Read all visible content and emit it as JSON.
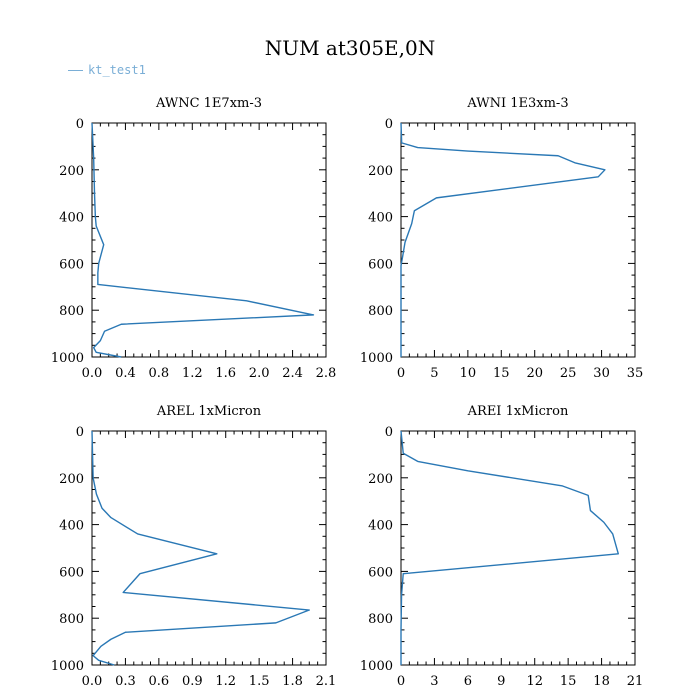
{
  "title": "NUM at305E,0N",
  "legend": {
    "label": "kt_test1"
  },
  "colors": {
    "series": "#2a78b5",
    "legend": "#7aaed6",
    "axis": "#000000"
  },
  "chart_data": [
    {
      "type": "line",
      "title": "AWNC  1E7xm-3",
      "xlim": [
        0,
        2.8
      ],
      "ylim": [
        1000,
        0
      ],
      "xticks": [
        0.0,
        0.4,
        0.8,
        1.2,
        1.6,
        2.0,
        2.4,
        2.8
      ],
      "xtick_labels": [
        "0.0",
        "0.4",
        "0.8",
        "1.2",
        "1.6",
        "2.0",
        "2.4",
        "2.8"
      ],
      "yticks": [
        0,
        200,
        400,
        600,
        800,
        1000
      ],
      "ytick_labels": [
        "0",
        "200",
        "400",
        "600",
        "800",
        "1000"
      ],
      "series": [
        {
          "name": "kt_test1",
          "x": [
            0.0,
            0.02,
            0.03,
            0.04,
            0.05,
            0.14,
            0.08,
            0.07,
            0.07,
            1.85,
            2.65,
            0.35,
            0.15,
            0.1,
            0.02,
            0.05,
            0.35
          ],
          "y": [
            0,
            150,
            300,
            400,
            440,
            520,
            600,
            640,
            690,
            760,
            820,
            860,
            890,
            930,
            960,
            980,
            1000
          ]
        }
      ]
    },
    {
      "type": "line",
      "title": "AWNI  1E3xm-3",
      "xlim": [
        0,
        35
      ],
      "ylim": [
        1000,
        0
      ],
      "xticks": [
        0,
        5,
        10,
        15,
        20,
        25,
        30,
        35
      ],
      "xtick_labels": [
        "0",
        "5",
        "10",
        "15",
        "20",
        "25",
        "30",
        "35"
      ],
      "yticks": [
        0,
        200,
        400,
        600,
        800,
        1000
      ],
      "ytick_labels": [
        "0",
        "200",
        "400",
        "600",
        "800",
        "1000"
      ],
      "series": [
        {
          "name": "kt_test1",
          "x": [
            0,
            0.1,
            2.5,
            10,
            23.5,
            26,
            30.5,
            29.5,
            5.3,
            2.0,
            1.6,
            0.6,
            0.25,
            0,
            0,
            0
          ],
          "y": [
            0,
            85,
            105,
            120,
            140,
            170,
            200,
            230,
            320,
            375,
            430,
            510,
            570,
            610,
            800,
            1000
          ]
        }
      ]
    },
    {
      "type": "line",
      "title": "AREL  1xMicron",
      "xlim": [
        0,
        2.1
      ],
      "ylim": [
        1000,
        0
      ],
      "xticks": [
        0.0,
        0.3,
        0.6,
        0.9,
        1.2,
        1.5,
        1.8,
        2.1
      ],
      "xtick_labels": [
        "0.0",
        "0.3",
        "0.6",
        "0.9",
        "1.2",
        "1.5",
        "1.8",
        "2.1"
      ],
      "yticks": [
        0,
        200,
        400,
        600,
        800,
        1000
      ],
      "ytick_labels": [
        "0",
        "200",
        "400",
        "600",
        "800",
        "1000"
      ],
      "series": [
        {
          "name": "kt_test1",
          "x": [
            0.0,
            0.01,
            0.04,
            0.09,
            0.17,
            0.41,
            1.12,
            0.43,
            0.28,
            1.95,
            1.65,
            0.3,
            0.17,
            0.08,
            0.01,
            0.06,
            0.2
          ],
          "y": [
            0,
            200,
            270,
            330,
            370,
            440,
            525,
            610,
            690,
            765,
            820,
            860,
            890,
            920,
            960,
            980,
            1000
          ]
        }
      ]
    },
    {
      "type": "line",
      "title": "AREI  1xMicron",
      "xlim": [
        0,
        21
      ],
      "ylim": [
        1000,
        0
      ],
      "xticks": [
        0,
        3,
        6,
        9,
        12,
        15,
        18,
        21
      ],
      "xtick_labels": [
        "0",
        "3",
        "6",
        "9",
        "12",
        "15",
        "18",
        "21"
      ],
      "yticks": [
        0,
        200,
        400,
        600,
        800,
        1000
      ],
      "ytick_labels": [
        "0",
        "200",
        "400",
        "600",
        "800",
        "1000"
      ],
      "series": [
        {
          "name": "kt_test1",
          "x": [
            0,
            0.2,
            1.5,
            6,
            14.5,
            16.8,
            17,
            18.2,
            19,
            19.5,
            0.2,
            0.05,
            0,
            0
          ],
          "y": [
            0,
            95,
            130,
            170,
            235,
            275,
            340,
            390,
            440,
            525,
            610,
            700,
            850,
            1000
          ]
        }
      ]
    }
  ]
}
